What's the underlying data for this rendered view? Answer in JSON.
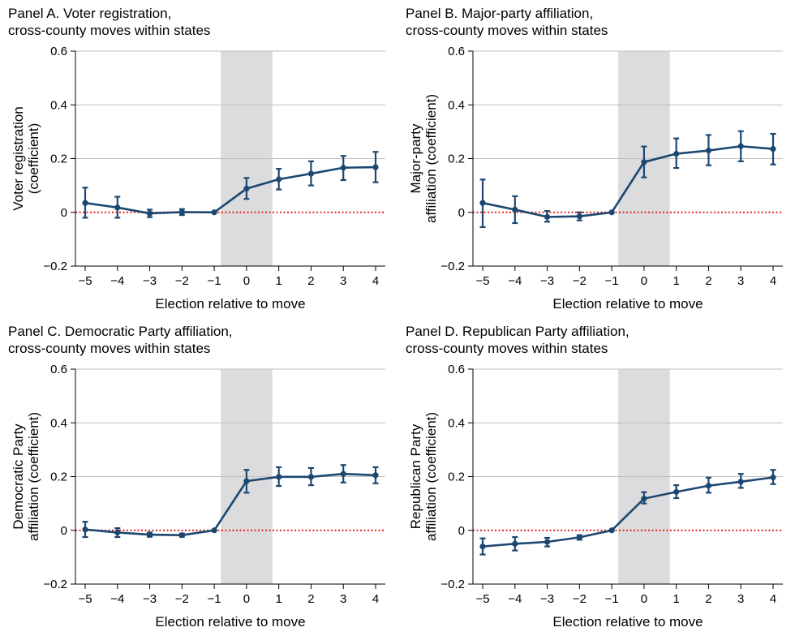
{
  "chart_data": [
    {
      "type": "line",
      "title_line1": "Panel A. Voter registration,",
      "title_line2": "cross-county moves within states",
      "xlabel": "Election relative to move",
      "ylabel_line1": "Voter registration",
      "ylabel_line2": "(coefficient)",
      "xlim": [
        -5,
        4
      ],
      "ylim": [
        -0.2,
        0.6
      ],
      "xticks": [
        -5,
        -4,
        -3,
        -2,
        -1,
        0,
        1,
        2,
        3,
        4
      ],
      "xtick_labels": [
        "−5",
        "−4",
        "−3",
        "−2",
        "−1",
        "0",
        "1",
        "2",
        "3",
        "4"
      ],
      "yticks": [
        -0.2,
        0,
        0.2,
        0.4,
        0.6
      ],
      "ytick_labels": [
        "−0.2",
        "0",
        "0.2",
        "0.4",
        "0.6"
      ],
      "shaded_region": [
        -0.8,
        0.8
      ],
      "reference_line": 0,
      "series": [
        {
          "x": [
            -5,
            -4,
            -3,
            -2,
            -1,
            0,
            1,
            2,
            3,
            4
          ],
          "y": [
            0.035,
            0.018,
            -0.004,
            0.001,
            0,
            0.088,
            0.123,
            0.144,
            0.166,
            0.168
          ],
          "lower": [
            -0.02,
            -0.02,
            -0.018,
            -0.01,
            0,
            0.05,
            0.085,
            0.1,
            0.12,
            0.112
          ],
          "upper": [
            0.092,
            0.058,
            0.01,
            0.012,
            0,
            0.128,
            0.162,
            0.19,
            0.21,
            0.225
          ]
        }
      ]
    },
    {
      "type": "line",
      "title_line1": "Panel B. Major-party affiliation,",
      "title_line2": "cross-county moves within states",
      "xlabel": "Election relative to move",
      "ylabel_line1": "Major-party",
      "ylabel_line2": "affiliation (coefficient)",
      "xlim": [
        -5,
        4
      ],
      "ylim": [
        -0.2,
        0.6
      ],
      "xticks": [
        -5,
        -4,
        -3,
        -2,
        -1,
        0,
        1,
        2,
        3,
        4
      ],
      "xtick_labels": [
        "−5",
        "−4",
        "−3",
        "−2",
        "−1",
        "0",
        "1",
        "2",
        "3",
        "4"
      ],
      "yticks": [
        -0.2,
        0,
        0.2,
        0.4,
        0.6
      ],
      "ytick_labels": [
        "−0.2",
        "0",
        "0.2",
        "0.4",
        "0.6"
      ],
      "shaded_region": [
        -0.8,
        0.8
      ],
      "reference_line": 0,
      "series": [
        {
          "x": [
            -5,
            -4,
            -3,
            -2,
            -1,
            0,
            1,
            2,
            3,
            4
          ],
          "y": [
            0.035,
            0.01,
            -0.017,
            -0.015,
            0,
            0.187,
            0.218,
            0.23,
            0.246,
            0.236
          ],
          "lower": [
            -0.055,
            -0.04,
            -0.035,
            -0.03,
            0,
            0.13,
            0.165,
            0.175,
            0.19,
            0.178
          ],
          "upper": [
            0.122,
            0.06,
            0.005,
            0,
            0,
            0.245,
            0.275,
            0.288,
            0.302,
            0.292
          ]
        }
      ]
    },
    {
      "type": "line",
      "title_line1": "Panel C. Democratic Party affiliation,",
      "title_line2": "cross-county moves within states",
      "xlabel": "Election relative to move",
      "ylabel_line1": "Democratic Party",
      "ylabel_line2": "affiliation (coefficient)",
      "xlim": [
        -5,
        4
      ],
      "ylim": [
        -0.2,
        0.6
      ],
      "xticks": [
        -5,
        -4,
        -3,
        -2,
        -1,
        0,
        1,
        2,
        3,
        4
      ],
      "xtick_labels": [
        "−5",
        "−4",
        "−3",
        "−2",
        "−1",
        "0",
        "1",
        "2",
        "3",
        "4"
      ],
      "yticks": [
        -0.2,
        0,
        0.2,
        0.4,
        0.6
      ],
      "ytick_labels": [
        "−0.2",
        "0",
        "0.2",
        "0.4",
        "0.6"
      ],
      "shaded_region": [
        -0.8,
        0.8
      ],
      "reference_line": 0,
      "series": [
        {
          "x": [
            -5,
            -4,
            -3,
            -2,
            -1,
            0,
            1,
            2,
            3,
            4
          ],
          "y": [
            0.003,
            -0.008,
            -0.016,
            -0.018,
            0,
            0.183,
            0.199,
            0.199,
            0.21,
            0.205
          ],
          "lower": [
            -0.025,
            -0.025,
            -0.024,
            -0.024,
            0,
            0.14,
            0.165,
            0.168,
            0.178,
            0.175
          ],
          "upper": [
            0.032,
            0.008,
            -0.008,
            -0.012,
            0,
            0.225,
            0.235,
            0.232,
            0.243,
            0.235
          ]
        }
      ]
    },
    {
      "type": "line",
      "title_line1": "Panel D. Republican Party affiliation,",
      "title_line2": "cross-county moves within states",
      "xlabel": "Election relative to move",
      "ylabel_line1": "Republican Party",
      "ylabel_line2": "affiliation (coefficient)",
      "xlim": [
        -5,
        4
      ],
      "ylim": [
        -0.2,
        0.6
      ],
      "xticks": [
        -5,
        -4,
        -3,
        -2,
        -1,
        0,
        1,
        2,
        3,
        4
      ],
      "xtick_labels": [
        "−5",
        "−4",
        "−3",
        "−2",
        "−1",
        "0",
        "1",
        "2",
        "3",
        "4"
      ],
      "yticks": [
        -0.2,
        0,
        0.2,
        0.4,
        0.6
      ],
      "ytick_labels": [
        "−0.2",
        "0",
        "0.2",
        "0.4",
        "0.6"
      ],
      "shaded_region": [
        -0.8,
        0.8
      ],
      "reference_line": 0,
      "series": [
        {
          "x": [
            -5,
            -4,
            -3,
            -2,
            -1,
            0,
            1,
            2,
            3,
            4
          ],
          "y": [
            -0.06,
            -0.05,
            -0.043,
            -0.026,
            0,
            0.118,
            0.143,
            0.166,
            0.181,
            0.197
          ],
          "lower": [
            -0.09,
            -0.075,
            -0.06,
            -0.035,
            0,
            0.1,
            0.12,
            0.14,
            0.158,
            0.172
          ],
          "upper": [
            -0.03,
            -0.025,
            -0.028,
            -0.018,
            0,
            0.142,
            0.168,
            0.196,
            0.21,
            0.225
          ]
        }
      ]
    }
  ],
  "colors": {
    "series": "#1c4770",
    "shade": "#dcdcde",
    "grid": "#bfbfbf",
    "reference": "#e0251e",
    "axis": "#000000"
  }
}
